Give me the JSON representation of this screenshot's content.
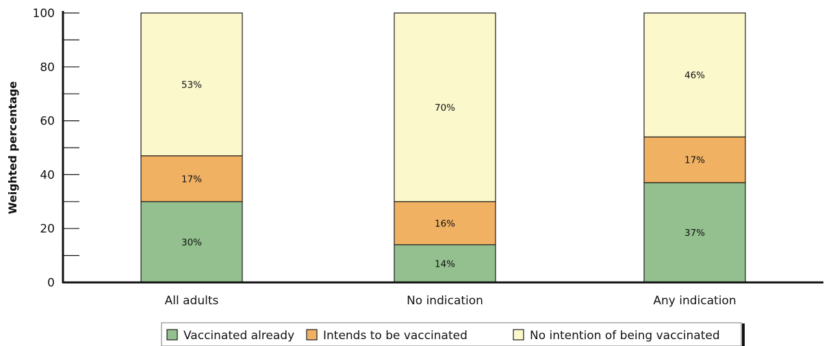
{
  "chart_data": {
    "type": "bar",
    "stacked": true,
    "categories": [
      "All adults",
      "No indication",
      "Any indication"
    ],
    "series": [
      {
        "name": "Vaccinated already",
        "values": [
          30,
          14,
          37
        ],
        "labels": [
          "30%",
          "14%",
          "37%"
        ],
        "color": "#93c08e"
      },
      {
        "name": "Intends to be vaccinated",
        "values": [
          17,
          16,
          17
        ],
        "labels": [
          "17%",
          "16%",
          "17%"
        ],
        "color": "#f0b163"
      },
      {
        "name": "No intention of being vaccinated",
        "values": [
          53,
          70,
          46
        ],
        "labels": [
          "53%",
          "70%",
          "46%"
        ],
        "color": "#fbf8cc"
      }
    ],
    "title": "",
    "xlabel": "",
    "ylabel": "Weighted percentage",
    "ylim": [
      0,
      100
    ],
    "yticks": [
      0,
      20,
      40,
      60,
      80,
      100
    ],
    "grid": false,
    "legend": "bottom"
  }
}
